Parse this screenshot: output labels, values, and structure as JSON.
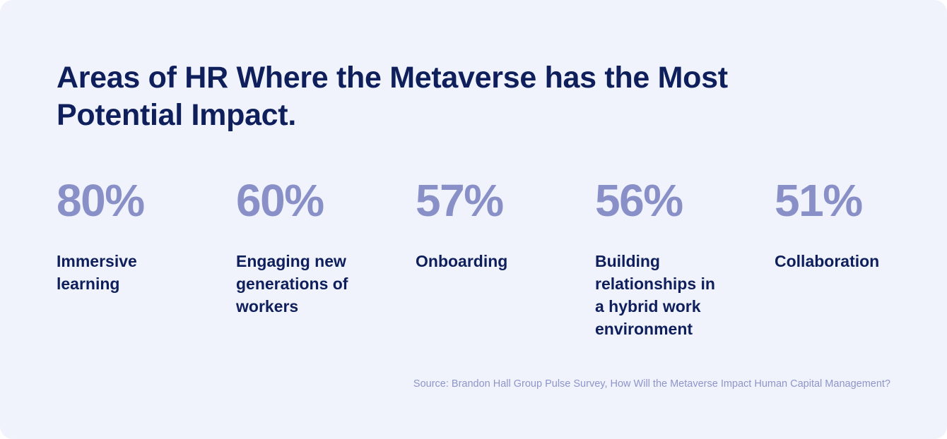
{
  "chart_data": {
    "type": "table",
    "title": "Areas of HR Where the Metaverse has the Most Potential Impact.",
    "categories": [
      "Immersive learning",
      "Engaging new generations of workers",
      "Onboarding",
      "Building relationships in a hybrid work environment",
      "Collaboration"
    ],
    "value_labels": [
      "80%",
      "60%",
      "57%",
      "56%",
      "51%"
    ],
    "values": [
      80,
      60,
      57,
      56,
      51
    ],
    "source": "Source: Brandon Hall Group Pulse Survey, How Will the Metaverse Impact Human Capital Management?"
  },
  "colors": {
    "background": "#f0f3fc",
    "title": "#0f1f5c",
    "value": "#8990c7",
    "source": "#8f95c9"
  }
}
